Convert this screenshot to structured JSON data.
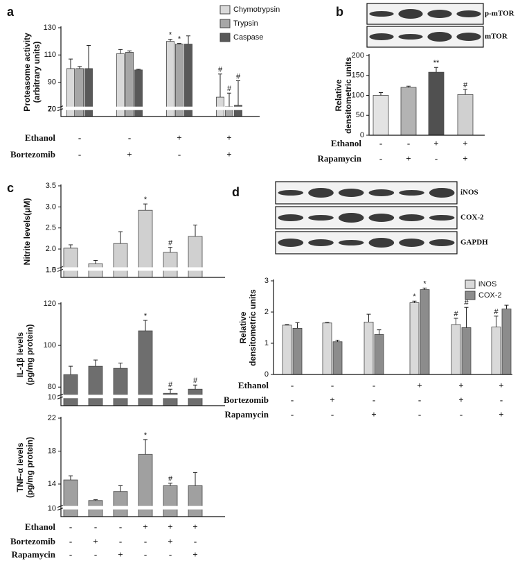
{
  "chart_data": [
    {
      "type": "bar",
      "panel": "a",
      "ylabel": [
        "Proteasome activity",
        "(arbitrary units)"
      ],
      "ylim": [
        0,
        130
      ],
      "ybreak": [
        20,
        70
      ],
      "yticks": [
        20,
        70,
        90,
        110,
        130
      ],
      "series": [
        {
          "name": "Chymotrypsin",
          "color": "#d9d9d9",
          "values": [
            100,
            111,
            120,
            79
          ],
          "errors": [
            7,
            3,
            1.5,
            17
          ],
          "annotations": [
            null,
            null,
            "*",
            "#"
          ]
        },
        {
          "name": "Trypsin",
          "color": "#a6a6a6",
          "values": [
            100,
            112,
            118,
            72
          ],
          "errors": [
            1.5,
            1,
            0.5,
            10
          ],
          "annotations": [
            null,
            null,
            "*",
            "#"
          ]
        },
        {
          "name": "Caspase",
          "color": "#595959",
          "values": [
            100,
            99,
            118,
            73
          ],
          "errors": [
            17,
            0.5,
            6,
            18
          ],
          "annotations": [
            null,
            null,
            null,
            "#"
          ]
        }
      ],
      "conditions": [
        {
          "name": "Ethanol",
          "signs": [
            "-",
            "-",
            "+",
            "+"
          ]
        },
        {
          "name": "Bortezomib",
          "signs": [
            "-",
            "+",
            "-",
            "+"
          ]
        }
      ]
    },
    {
      "type": "bar",
      "panel": "b",
      "ylabel": [
        "Relative",
        "densitometric units"
      ],
      "ylim": [
        0,
        200
      ],
      "yticks": [
        0,
        50,
        100,
        150,
        200
      ],
      "values": [
        100,
        120,
        158,
        102
      ],
      "errors": [
        7,
        3,
        12,
        13
      ],
      "annotations": [
        null,
        null,
        "**",
        "#"
      ],
      "colors": [
        "#e3e3e3",
        "#b3b3b3",
        "#505050",
        "#d0d0d0"
      ],
      "blot_labels": [
        "p-mTOR",
        "mTOR"
      ],
      "conditions": [
        {
          "name": "Ethanol",
          "signs": [
            "-",
            "-",
            "+",
            "+"
          ]
        },
        {
          "name": "Rapamycin",
          "signs": [
            "-",
            "+",
            "-",
            "+"
          ]
        }
      ]
    },
    {
      "type": "bar",
      "panel": "c",
      "ylabel": [
        "Nitrite levels(μM)"
      ],
      "ylim": [
        0.8,
        3.5
      ],
      "ybreak": [
        1.0,
        1.5
      ],
      "yticks": [
        {
          "value": 1,
          "label": "1.0"
        },
        1.5,
        {
          "value": 2,
          "label": "2.0"
        },
        2.5,
        {
          "value": 3,
          "label": "3.0"
        },
        3.5
      ],
      "values": [
        2.02,
        1.65,
        2.13,
        2.92,
        1.92,
        2.3
      ],
      "errors": [
        0.08,
        0.08,
        0.28,
        0.15,
        0.12,
        0.27
      ],
      "annotations": [
        null,
        null,
        null,
        "*",
        "#",
        null
      ],
      "color": "#d0d0d0"
    },
    {
      "type": "bar",
      "ylabel": [
        "IL-1β levels",
        "(pg/mg protein)"
      ],
      "ylim": [
        0,
        120
      ],
      "ybreak": [
        10,
        75
      ],
      "yticks": [
        10,
        80,
        100,
        120
      ],
      "values": [
        86,
        90,
        89,
        107,
        77,
        79
      ],
      "errors": [
        4,
        3,
        2.5,
        5,
        2,
        2
      ],
      "annotations": [
        null,
        null,
        null,
        "*",
        "#",
        "#"
      ],
      "color": "#6e6e6e"
    },
    {
      "type": "bar",
      "ylabel": [
        "TNF-α levels",
        "(pg/mg protein)"
      ],
      "ylim": [
        9,
        22
      ],
      "ybreak": [
        10,
        11
      ],
      "yticks": [
        10,
        14,
        18,
        22
      ],
      "values": [
        14.5,
        12,
        13.1,
        17.6,
        13.8,
        13.8
      ],
      "errors": [
        0.5,
        0.1,
        0.7,
        1.8,
        0.3,
        1.6
      ],
      "annotations": [
        null,
        null,
        null,
        "*",
        "#",
        null
      ],
      "color": "#a0a0a0",
      "conditions": [
        {
          "name": "Ethanol",
          "signs": [
            "-",
            "-",
            "-",
            "+",
            "+",
            "+"
          ]
        },
        {
          "name": "Bortezomib",
          "signs": [
            "-",
            "+",
            "-",
            "-",
            "+",
            "-"
          ]
        },
        {
          "name": "Rapamycin",
          "signs": [
            "-",
            "-",
            "+",
            "-",
            "-",
            "+"
          ]
        }
      ]
    },
    {
      "type": "bar",
      "panel": "d",
      "ylabel": [
        "Relative",
        "densitometric units"
      ],
      "ylim": [
        0,
        3
      ],
      "yticks": [
        0,
        1,
        2,
        3
      ],
      "series": [
        {
          "name": "iNOS",
          "color": "#d9d9d9",
          "values": [
            1.58,
            1.65,
            1.68,
            2.3,
            1.6,
            1.52
          ],
          "errors": [
            0.02,
            0.02,
            0.25,
            0.05,
            0.2,
            0.35
          ],
          "annotations": [
            null,
            null,
            null,
            "*",
            "#",
            "#"
          ]
        },
        {
          "name": "COX-2",
          "color": "#8c8c8c",
          "values": [
            1.48,
            1.05,
            1.28,
            2.72,
            1.5,
            2.1
          ],
          "errors": [
            0.18,
            0.05,
            0.15,
            0.05,
            0.65,
            0.12
          ],
          "annotations": [
            null,
            null,
            null,
            "*",
            "#",
            null
          ]
        }
      ],
      "blot_labels": [
        "iNOS",
        "COX-2",
        "GAPDH"
      ],
      "conditions": [
        {
          "name": "Ethanol",
          "signs": [
            "-",
            "-",
            "-",
            "+",
            "+",
            "+"
          ]
        },
        {
          "name": "Bortezomib",
          "signs": [
            "-",
            "+",
            "-",
            "-",
            "+",
            "-"
          ]
        },
        {
          "name": "Rapamycin",
          "signs": [
            "-",
            "-",
            "+",
            "-",
            "-",
            "+"
          ]
        }
      ]
    }
  ]
}
